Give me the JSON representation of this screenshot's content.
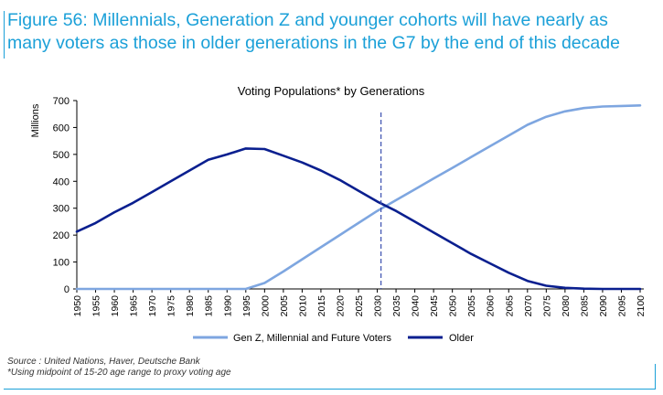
{
  "figure": {
    "title": "Figure 56: Millennials, Generation Z and younger cohorts will have nearly as many voters as those in older generations in the G7 by the end of this decade",
    "source": "Source : United Nations, Haver, Deutsche Bank",
    "note": "*Using midpoint of 15-20 age range to proxy voting age",
    "accent_color": "#1ba0d8"
  },
  "chart_data": {
    "type": "line",
    "title": "Voting Populations* by Generations",
    "xlabel": "",
    "ylabel": "Millions",
    "ylim": [
      0,
      700
    ],
    "yticks": [
      0,
      100,
      200,
      300,
      400,
      500,
      600,
      700
    ],
    "x": [
      1950,
      1955,
      1960,
      1965,
      1970,
      1975,
      1980,
      1985,
      1990,
      1995,
      2000,
      2005,
      2010,
      2015,
      2020,
      2025,
      2030,
      2035,
      2040,
      2045,
      2050,
      2055,
      2060,
      2065,
      2070,
      2075,
      2080,
      2085,
      2090,
      2095,
      2100
    ],
    "vertical_line_x": 2031,
    "grid": false,
    "legend_position": "bottom",
    "series": [
      {
        "name": "Gen Z, Millennial and Future Voters",
        "color": "#7ea6e0",
        "values": [
          0,
          0,
          0,
          0,
          0,
          0,
          0,
          0,
          0,
          0,
          22,
          65,
          110,
          155,
          200,
          245,
          290,
          330,
          370,
          410,
          450,
          490,
          530,
          570,
          610,
          640,
          660,
          672,
          678,
          680,
          682
        ]
      },
      {
        "name": "Older",
        "color": "#0a1f8f",
        "values": [
          213,
          245,
          285,
          320,
          360,
          400,
          440,
          480,
          500,
          522,
          520,
          495,
          470,
          440,
          405,
          365,
          325,
          290,
          250,
          210,
          170,
          130,
          95,
          60,
          30,
          12,
          4,
          1,
          0,
          0,
          0
        ]
      }
    ]
  }
}
